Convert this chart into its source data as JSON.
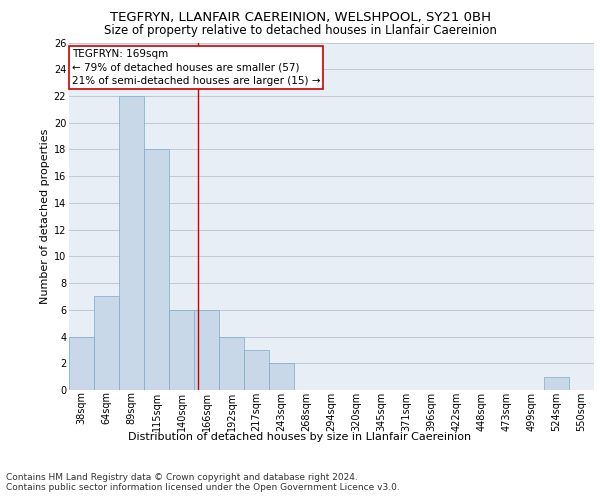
{
  "title": "TEGFRYN, LLANFAIR CAEREINION, WELSHPOOL, SY21 0BH",
  "subtitle": "Size of property relative to detached houses in Llanfair Caereinion",
  "xlabel": "Distribution of detached houses by size in Llanfair Caereinion",
  "ylabel": "Number of detached properties",
  "categories": [
    "38sqm",
    "64sqm",
    "89sqm",
    "115sqm",
    "140sqm",
    "166sqm",
    "192sqm",
    "217sqm",
    "243sqm",
    "268sqm",
    "294sqm",
    "320sqm",
    "345sqm",
    "371sqm",
    "396sqm",
    "422sqm",
    "448sqm",
    "473sqm",
    "499sqm",
    "524sqm",
    "550sqm"
  ],
  "values": [
    4,
    7,
    22,
    18,
    6,
    6,
    4,
    3,
    2,
    0,
    0,
    0,
    0,
    0,
    0,
    0,
    0,
    0,
    0,
    1,
    0
  ],
  "bar_color": "#c8d8e8",
  "bar_edge_color": "#7aaac8",
  "annotation_text": "TEGFRYN: 169sqm\n← 79% of detached houses are smaller (57)\n21% of semi-detached houses are larger (15) →",
  "annotation_box_color": "#ffffff",
  "annotation_box_edge_color": "#cc0000",
  "vline_x": 4.65,
  "vline_color": "#cc0000",
  "ylim": [
    0,
    26
  ],
  "yticks": [
    0,
    2,
    4,
    6,
    8,
    10,
    12,
    14,
    16,
    18,
    20,
    22,
    24,
    26
  ],
  "grid_color": "#c0c8d8",
  "background_color": "#e8eef5",
  "footer": "Contains HM Land Registry data © Crown copyright and database right 2024.\nContains public sector information licensed under the Open Government Licence v3.0.",
  "title_fontsize": 9.5,
  "subtitle_fontsize": 8.5,
  "xlabel_fontsize": 8,
  "ylabel_fontsize": 8,
  "tick_fontsize": 7,
  "annotation_fontsize": 7.5,
  "footer_fontsize": 6.5
}
